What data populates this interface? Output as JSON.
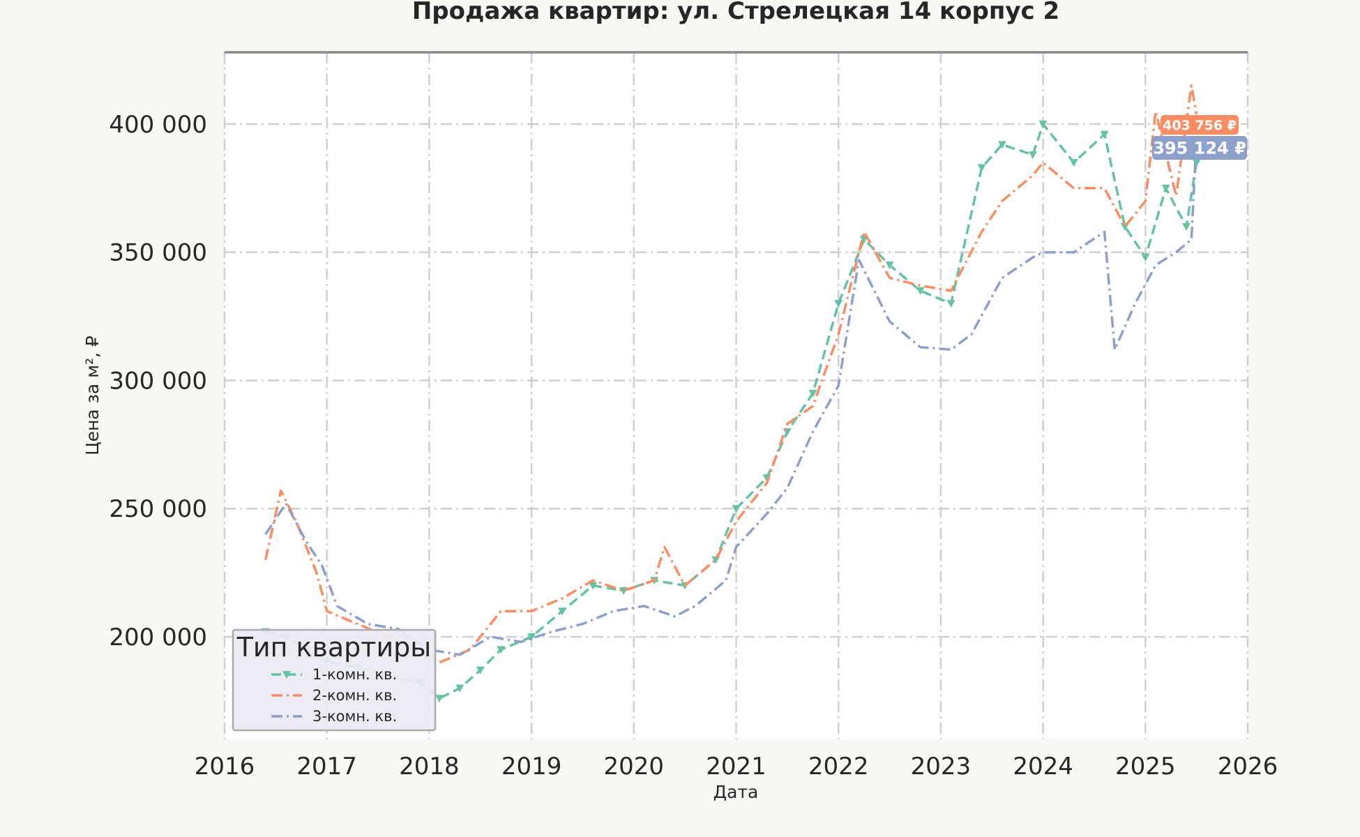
{
  "chart_data": {
    "type": "line",
    "title": "Продажа квартир: ул. Стрелецкая 14 корпус 2",
    "xlabel": "Дата",
    "ylabel": "Цена за м², ₽",
    "xlim": [
      2016,
      2026
    ],
    "ylim": [
      160000,
      428000
    ],
    "x_ticks": [
      "2016",
      "2017",
      "2018",
      "2019",
      "2020",
      "2021",
      "2022",
      "2023",
      "2024",
      "2025",
      "2026"
    ],
    "y_ticks": [
      "200 000",
      "250 000",
      "300 000",
      "350 000",
      "400 000"
    ],
    "y_tick_values": [
      200000,
      250000,
      300000,
      350000,
      400000
    ],
    "grid": true,
    "legend": {
      "title": "Тип квартиры",
      "position": "bottom-left"
    },
    "series": [
      {
        "name": "1-комн. кв.",
        "color": "#66c2a5",
        "dash": "dashed",
        "marker": "triangle-down",
        "x": [
          2016.4,
          2016.6,
          2016.8,
          2017.0,
          2017.3,
          2017.6,
          2017.9,
          2018.1,
          2018.3,
          2018.5,
          2018.7,
          2019.0,
          2019.3,
          2019.6,
          2019.9,
          2020.2,
          2020.5,
          2020.8,
          2021.0,
          2021.3,
          2021.5,
          2021.75,
          2022.0,
          2022.25,
          2022.5,
          2022.8,
          2023.1,
          2023.4,
          2023.6,
          2023.9,
          2024.0,
          2024.3,
          2024.6,
          2024.8,
          2025.0,
          2025.2,
          2025.4,
          2025.5
        ],
        "y": [
          202000,
          200000,
          195000,
          190000,
          188000,
          185000,
          182000,
          176000,
          180000,
          187000,
          195000,
          200000,
          210000,
          220000,
          218000,
          222000,
          220000,
          230000,
          250000,
          262000,
          280000,
          295000,
          330000,
          355000,
          345000,
          335000,
          330000,
          383000,
          392000,
          388000,
          400000,
          385000,
          396000,
          360000,
          348000,
          375000,
          360000,
          385000
        ]
      },
      {
        "name": "2-комн. кв.",
        "color": "#fc8d62",
        "dash": "dashdot",
        "marker": "",
        "x": [
          2016.4,
          2016.55,
          2016.7,
          2016.9,
          2017.0,
          2017.3,
          2017.6,
          2017.9,
          2018.1,
          2018.4,
          2018.7,
          2019.0,
          2019.3,
          2019.6,
          2019.9,
          2020.2,
          2020.3,
          2020.5,
          2020.8,
          2021.0,
          2021.3,
          2021.5,
          2021.75,
          2022.0,
          2022.25,
          2022.5,
          2022.8,
          2023.1,
          2023.4,
          2023.6,
          2023.9,
          2024.0,
          2024.3,
          2024.6,
          2024.8,
          2025.0,
          2025.1,
          2025.3,
          2025.45,
          2025.5
        ],
        "y": [
          230000,
          257000,
          245000,
          225000,
          210000,
          205000,
          200000,
          195000,
          190000,
          195000,
          210000,
          210000,
          215000,
          222000,
          218000,
          222000,
          235000,
          220000,
          230000,
          245000,
          260000,
          283000,
          290000,
          318000,
          358000,
          340000,
          337000,
          335000,
          358000,
          370000,
          380000,
          385000,
          375000,
          375000,
          360000,
          370000,
          405000,
          372000,
          415000,
          403756
        ]
      },
      {
        "name": "3-комн. кв.",
        "color": "#8da0cb",
        "dash": "dashdot",
        "marker": "",
        "x": [
          2016.4,
          2016.6,
          2016.8,
          2016.95,
          2017.1,
          2017.4,
          2017.7,
          2018.0,
          2018.3,
          2018.6,
          2018.9,
          2019.2,
          2019.5,
          2019.8,
          2020.1,
          2020.4,
          2020.6,
          2020.9,
          2021.0,
          2021.3,
          2021.5,
          2021.75,
          2022.0,
          2022.2,
          2022.5,
          2022.8,
          2023.1,
          2023.3,
          2023.6,
          2023.9,
          2024.0,
          2024.3,
          2024.6,
          2024.7,
          2024.9,
          2025.1,
          2025.3,
          2025.45,
          2025.5
        ],
        "y": [
          240000,
          252000,
          237000,
          228000,
          212000,
          205000,
          203000,
          195000,
          193000,
          200000,
          198000,
          202000,
          205000,
          210000,
          212000,
          208000,
          212000,
          222000,
          235000,
          248000,
          258000,
          280000,
          298000,
          347000,
          323000,
          313000,
          312000,
          318000,
          340000,
          348000,
          350000,
          350000,
          358000,
          312000,
          330000,
          345000,
          350000,
          355000,
          395124
        ]
      }
    ],
    "annotations": [
      {
        "text": "403 756 ₽",
        "series": "2-комн. кв.",
        "value": 403756
      },
      {
        "text": "395 124 ₽",
        "series": "3-комн. кв.",
        "value": 395124
      }
    ]
  }
}
